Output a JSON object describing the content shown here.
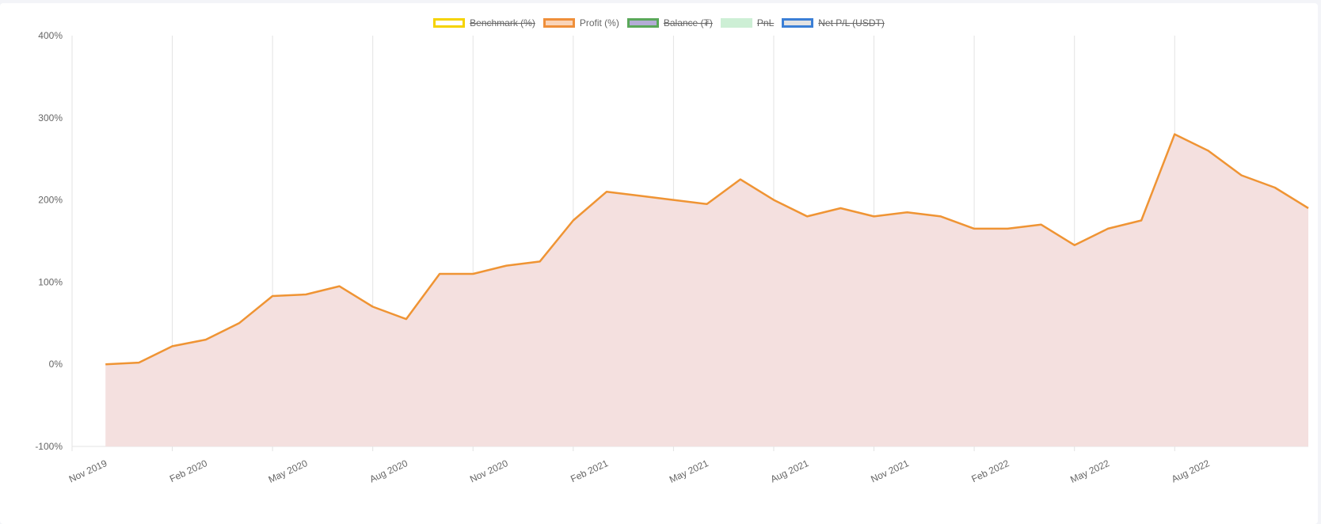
{
  "chart_data": {
    "type": "area",
    "legend": [
      {
        "name": "Benchmark (%)",
        "border": "#f5d300",
        "fill": "#ffffff",
        "hidden": true
      },
      {
        "name": "Profit (%)",
        "border": "#ef8f3a",
        "fill": "#f9d4b9",
        "hidden": false
      },
      {
        "name": "Balance (₮)",
        "border": "#5aa85a",
        "fill": "#b3acd6",
        "hidden": true
      },
      {
        "name": "PnL",
        "border": "#cdefd5",
        "fill": "#cdefd5",
        "hidden": true
      },
      {
        "name": "Net P/L (USDT)",
        "border": "#3b7fd6",
        "fill": "#e3e3e3",
        "hidden": true
      }
    ],
    "x": [
      "2019-12",
      "2020-01",
      "2020-02",
      "2020-03",
      "2020-04",
      "2020-05",
      "2020-06",
      "2020-07",
      "2020-08",
      "2020-09",
      "2020-10",
      "2020-11",
      "2020-12",
      "2021-01",
      "2021-02",
      "2021-03",
      "2021-04",
      "2021-05",
      "2021-06",
      "2021-07",
      "2021-08",
      "2021-09",
      "2021-10",
      "2021-11",
      "2021-12",
      "2022-01",
      "2022-02",
      "2022-03",
      "2022-04",
      "2022-05",
      "2022-06",
      "2022-07",
      "2022-08",
      "2022-09",
      "2022-10",
      "2022-11",
      "2022-12"
    ],
    "series": [
      {
        "name": "Profit (%)",
        "color": "#ef9434",
        "fill": "#f4e0df",
        "values": [
          0,
          2,
          22,
          30,
          50,
          83,
          85,
          95,
          70,
          55,
          110,
          110,
          120,
          125,
          175,
          210,
          205,
          200,
          195,
          225,
          200,
          180,
          190,
          180,
          185,
          180,
          165,
          165,
          170,
          145,
          165,
          175,
          280,
          260,
          230,
          215,
          190
        ]
      }
    ],
    "xlim": [
      "2019-11",
      "2022-12"
    ],
    "xticks": [
      {
        "value": "2019-11",
        "label": "Nov 2019"
      },
      {
        "value": "2020-02",
        "label": "Feb 2020"
      },
      {
        "value": "2020-05",
        "label": "May 2020"
      },
      {
        "value": "2020-08",
        "label": "Aug 2020"
      },
      {
        "value": "2020-11",
        "label": "Nov 2020"
      },
      {
        "value": "2021-02",
        "label": "Feb 2021"
      },
      {
        "value": "2021-05",
        "label": "May 2021"
      },
      {
        "value": "2021-08",
        "label": "Aug 2021"
      },
      {
        "value": "2021-11",
        "label": "Nov 2021"
      },
      {
        "value": "2022-02",
        "label": "Feb 2022"
      },
      {
        "value": "2022-05",
        "label": "May 2022"
      },
      {
        "value": "2022-08",
        "label": "Aug 2022"
      }
    ],
    "ylim": [
      -100,
      400
    ],
    "yticks": [
      {
        "value": -100,
        "label": "-100%"
      },
      {
        "value": 0,
        "label": "0%"
      },
      {
        "value": 100,
        "label": "100%"
      },
      {
        "value": 200,
        "label": "200%"
      },
      {
        "value": 300,
        "label": "300%"
      },
      {
        "value": 400,
        "label": "400%"
      }
    ],
    "grid": true
  }
}
